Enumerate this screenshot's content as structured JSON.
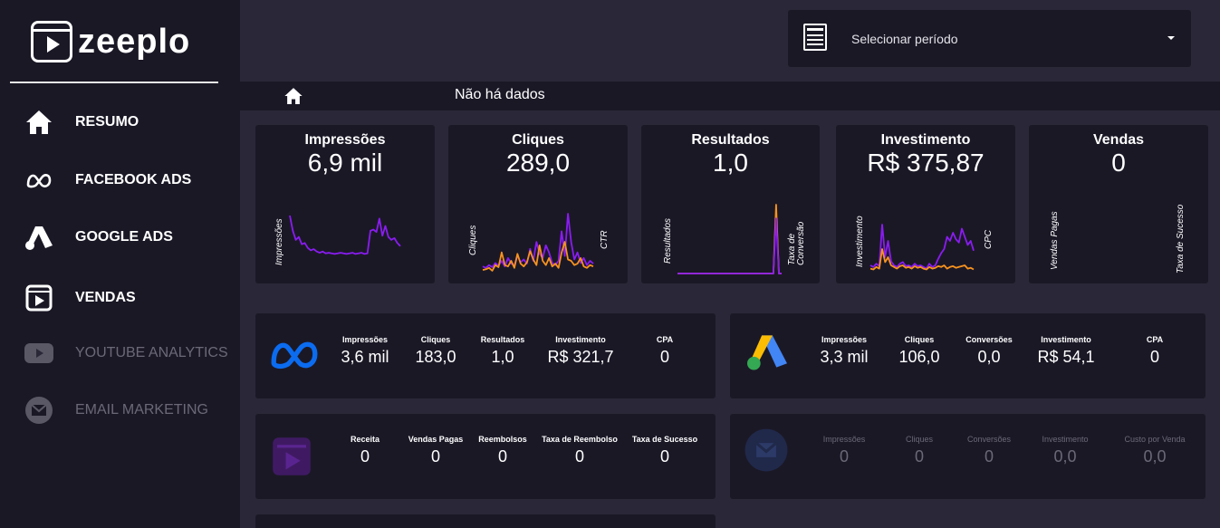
{
  "brand": {
    "name": "zeeplo"
  },
  "sidebar": {
    "items": [
      {
        "label": "RESUMO",
        "icon": "home-icon"
      },
      {
        "label": "FACEBOOK ADS",
        "icon": "meta-icon"
      },
      {
        "label": "GOOGLE ADS",
        "icon": "google-ads-icon"
      },
      {
        "label": "VENDAS",
        "icon": "zeeplo-icon"
      },
      {
        "label": "YOUTUBE ANALYTICS",
        "icon": "youtube-icon"
      },
      {
        "label": "EMAIL MARKETING",
        "icon": "email-icon"
      }
    ]
  },
  "period": {
    "label": "Selecionar período"
  },
  "breadcrumb": {
    "text": "Não há dados"
  },
  "kpis": [
    {
      "title": "Impressões",
      "value": "6,9 mil",
      "left_axis": "Impressões",
      "right_axis": ""
    },
    {
      "title": "Cliques",
      "value": "289,0",
      "left_axis": "Cliques",
      "right_axis": "CTR"
    },
    {
      "title": "Resultados",
      "value": "1,0",
      "left_axis": "Resultados",
      "right_axis": "Taxa de Conversão"
    },
    {
      "title": "Investimento",
      "value": "R$ 375,87",
      "left_axis": "Investimento",
      "right_axis": "CPC"
    },
    {
      "title": "Vendas",
      "value": "0",
      "left_axis": "Vendas Pagas",
      "right_axis": "Taxa de Sucesso"
    }
  ],
  "panels": {
    "facebook": {
      "stats": [
        {
          "label": "Impressões",
          "value": "3,6 mil"
        },
        {
          "label": "Cliques",
          "value": "183,0"
        },
        {
          "label": "Resultados",
          "value": "1,0"
        },
        {
          "label": "Investimento",
          "value": "R$ 321,7"
        },
        {
          "label": "CPA",
          "value": "0"
        }
      ]
    },
    "google": {
      "stats": [
        {
          "label": "Impressões",
          "value": "3,3 mil"
        },
        {
          "label": "Cliques",
          "value": "106,0"
        },
        {
          "label": "Conversões",
          "value": "0,0"
        },
        {
          "label": "Investimento",
          "value": "R$ 54,1"
        },
        {
          "label": "CPA",
          "value": "0"
        }
      ]
    },
    "vendas": {
      "stats": [
        {
          "label": "Receita",
          "value": "0"
        },
        {
          "label": "Vendas Pagas",
          "value": "0"
        },
        {
          "label": "Reembolsos",
          "value": "0"
        },
        {
          "label": "Taxa de Reembolso",
          "value": "0"
        },
        {
          "label": "Taxa de Sucesso",
          "value": "0"
        }
      ]
    },
    "email": {
      "stats": [
        {
          "label": "Impressões",
          "value": "0"
        },
        {
          "label": "Cliques",
          "value": "0"
        },
        {
          "label": "Conversões",
          "value": "0"
        },
        {
          "label": "Investimento",
          "value": "0,0"
        },
        {
          "label": "Custo por Venda",
          "value": "0,0"
        }
      ]
    }
  },
  "colors": {
    "purple": "#8a1cf2",
    "orange": "#f7931e",
    "meta_blue": "#0b6cf0"
  },
  "chart_data": [
    {
      "type": "line",
      "title": "Impressões",
      "series": [
        {
          "name": "Impressões",
          "values": [
            95,
            70,
            55,
            60,
            48,
            50,
            42,
            38,
            40,
            36,
            34,
            36,
            33,
            34,
            33,
            32,
            33,
            34,
            33,
            32,
            33,
            34,
            32,
            33,
            34,
            32,
            33,
            70,
            72,
            68,
            90,
            62,
            78,
            60,
            55,
            58,
            50,
            45
          ]
        }
      ]
    },
    {
      "type": "line",
      "title": "Cliques",
      "series": [
        {
          "name": "Cliques",
          "values": [
            10,
            8,
            12,
            9,
            15,
            11,
            18,
            10,
            22,
            14,
            12,
            25,
            16,
            20,
            14,
            35,
            18,
            45,
            28,
            22,
            40,
            30,
            15,
            12,
            18,
            60,
            25,
            85,
            45,
            20,
            30,
            15,
            22,
            12,
            18,
            14
          ]
        },
        {
          "name": "CTR",
          "values": [
            5,
            6,
            8,
            4,
            12,
            9,
            30,
            12,
            10,
            18,
            8,
            28,
            14,
            10,
            16,
            32,
            20,
            12,
            40,
            18,
            12,
            22,
            10,
            14,
            8,
            30,
            45,
            20,
            18,
            12,
            14,
            22,
            10,
            8,
            12,
            10
          ]
        }
      ]
    },
    {
      "type": "line",
      "title": "Resultados",
      "series": [
        {
          "name": "Resultados",
          "values": [
            0,
            0,
            0,
            0,
            0,
            0,
            0,
            0,
            0,
            0,
            0,
            0,
            0,
            0,
            0,
            0,
            0,
            0,
            0,
            0,
            0,
            0,
            0,
            0,
            0,
            0,
            0,
            0,
            0,
            0,
            0,
            0,
            0,
            0,
            0,
            0,
            1,
            0,
            0
          ]
        },
        {
          "name": "Taxa de Conversão",
          "values": [
            0,
            0,
            0,
            0,
            0,
            0,
            0,
            0,
            0,
            0,
            0,
            0,
            0,
            0,
            0,
            0,
            0,
            0,
            0,
            0,
            0,
            0,
            0,
            0,
            0,
            0,
            0,
            0,
            0,
            0,
            0,
            0,
            0,
            0,
            0,
            0,
            0.8,
            0,
            0
          ]
        }
      ]
    },
    {
      "type": "line",
      "title": "Investimento",
      "series": [
        {
          "name": "Investimento",
          "values": [
            10,
            8,
            12,
            9,
            60,
            20,
            40,
            15,
            10,
            8,
            12,
            14,
            9,
            10,
            8,
            12,
            9,
            10,
            8,
            6,
            12,
            8,
            10,
            18,
            25,
            30,
            45,
            40,
            50,
            42,
            38,
            55,
            45,
            35,
            40,
            28
          ]
        },
        {
          "name": "CPC",
          "values": [
            6,
            5,
            8,
            6,
            30,
            14,
            20,
            10,
            8,
            6,
            9,
            10,
            7,
            8,
            6,
            9,
            7,
            8,
            6,
            5,
            8,
            6,
            7,
            9,
            8,
            10,
            6,
            8,
            9,
            7,
            8,
            9,
            10,
            6,
            7,
            5
          ]
        }
      ]
    },
    {
      "type": "line",
      "title": "Vendas",
      "series": [
        {
          "name": "Vendas Pagas",
          "values": []
        },
        {
          "name": "Taxa de Sucesso",
          "values": []
        }
      ]
    }
  ]
}
